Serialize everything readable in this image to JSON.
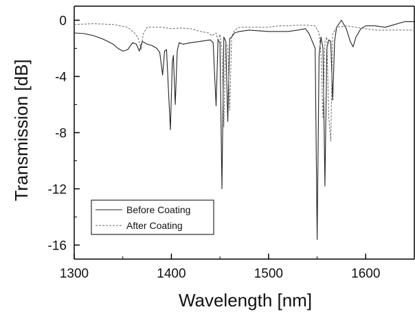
{
  "chart_data": {
    "type": "line",
    "title": "",
    "xlabel": "Wavelength [nm]",
    "ylabel": "Transmission [dB]",
    "xlim": [
      1300,
      1650
    ],
    "ylim": [
      -17,
      1
    ],
    "x_ticks": [
      1300,
      1400,
      1500,
      1600
    ],
    "y_ticks": [
      0,
      -4,
      -8,
      -12,
      -16
    ],
    "x_tick_labels": [
      "1300",
      "1400",
      "1500",
      "1600"
    ],
    "y_tick_labels": [
      "0",
      "-4",
      "-8",
      "-12",
      "-16"
    ],
    "grid": false,
    "legend_position": "bottom-left",
    "series": [
      {
        "name": "Before Coating",
        "style": "solid",
        "color": "#222222",
        "points": [
          [
            1300,
            -0.9
          ],
          [
            1310,
            -0.95
          ],
          [
            1320,
            -1.1
          ],
          [
            1330,
            -1.35
          ],
          [
            1340,
            -1.7
          ],
          [
            1345,
            -2.0
          ],
          [
            1350,
            -2.2
          ],
          [
            1355,
            -2.1
          ],
          [
            1360,
            -1.6
          ],
          [
            1364,
            -1.7
          ],
          [
            1367,
            -2.2
          ],
          [
            1370,
            -1.5
          ],
          [
            1375,
            -1.7
          ],
          [
            1380,
            -1.8
          ],
          [
            1385,
            -2.0
          ],
          [
            1388,
            -2.3
          ],
          [
            1391,
            -3.9
          ],
          [
            1393,
            -2.2
          ],
          [
            1395,
            -2.1
          ],
          [
            1397,
            -5.0
          ],
          [
            1399,
            -7.8
          ],
          [
            1401,
            -3.0
          ],
          [
            1402,
            -2.5
          ],
          [
            1404,
            -6.0
          ],
          [
            1406,
            -2.2
          ],
          [
            1408,
            -1.6
          ],
          [
            1412,
            -1.7
          ],
          [
            1420,
            -1.6
          ],
          [
            1430,
            -1.5
          ],
          [
            1440,
            -1.4
          ],
          [
            1443,
            -1.6
          ],
          [
            1446,
            -6.1
          ],
          [
            1448,
            -1.4
          ],
          [
            1450,
            -1.6
          ],
          [
            1452,
            -12.0
          ],
          [
            1454,
            -1.2
          ],
          [
            1456,
            -1.5
          ],
          [
            1458,
            -7.2
          ],
          [
            1460,
            -1.3
          ],
          [
            1462,
            -1.2
          ],
          [
            1465,
            -0.9
          ],
          [
            1470,
            -0.8
          ],
          [
            1480,
            -0.7
          ],
          [
            1490,
            -0.75
          ],
          [
            1500,
            -0.8
          ],
          [
            1510,
            -0.8
          ],
          [
            1520,
            -0.8
          ],
          [
            1530,
            -0.7
          ],
          [
            1538,
            -0.6
          ],
          [
            1542,
            -1.0
          ],
          [
            1545,
            -1.5
          ],
          [
            1548,
            -2.0
          ],
          [
            1550,
            -15.6
          ],
          [
            1552,
            -2.5
          ],
          [
            1554,
            -1.2
          ],
          [
            1556,
            -2.0
          ],
          [
            1558,
            -11.8
          ],
          [
            1560,
            -2.0
          ],
          [
            1562,
            -1.4
          ],
          [
            1564,
            -1.5
          ],
          [
            1566,
            -5.7
          ],
          [
            1568,
            -1.5
          ],
          [
            1570,
            -0.5
          ],
          [
            1575,
            0.0
          ],
          [
            1580,
            -0.6
          ],
          [
            1584,
            -1.5
          ],
          [
            1587,
            -1.9
          ],
          [
            1590,
            -1.2
          ],
          [
            1595,
            -0.6
          ],
          [
            1600,
            -0.4
          ],
          [
            1610,
            -0.4
          ],
          [
            1620,
            -0.5
          ],
          [
            1630,
            -0.3
          ],
          [
            1640,
            -0.1
          ],
          [
            1650,
            -0.1
          ]
        ]
      },
      {
        "name": "After Coating",
        "style": "dashed",
        "color": "#666666",
        "points": [
          [
            1300,
            -0.3
          ],
          [
            1320,
            -0.25
          ],
          [
            1340,
            -0.3
          ],
          [
            1355,
            -0.5
          ],
          [
            1362,
            -0.9
          ],
          [
            1366,
            -1.3
          ],
          [
            1369,
            -2.1
          ],
          [
            1371,
            -1.0
          ],
          [
            1375,
            -0.5
          ],
          [
            1380,
            -0.5
          ],
          [
            1390,
            -0.5
          ],
          [
            1395,
            -0.55
          ],
          [
            1400,
            -0.6
          ],
          [
            1410,
            -0.55
          ],
          [
            1420,
            -0.6
          ],
          [
            1430,
            -0.8
          ],
          [
            1438,
            -0.9
          ],
          [
            1442,
            -1.1
          ],
          [
            1446,
            -0.9
          ],
          [
            1448,
            -1.5
          ],
          [
            1450,
            -1.0
          ],
          [
            1452,
            -2.0
          ],
          [
            1454,
            -7.6
          ],
          [
            1456,
            -1.5
          ],
          [
            1458,
            -2.0
          ],
          [
            1460,
            -6.4
          ],
          [
            1462,
            -1.2
          ],
          [
            1465,
            -0.7
          ],
          [
            1470,
            -0.5
          ],
          [
            1480,
            -0.5
          ],
          [
            1490,
            -0.5
          ],
          [
            1500,
            -0.5
          ],
          [
            1510,
            -0.4
          ],
          [
            1520,
            -0.4
          ],
          [
            1530,
            -0.35
          ],
          [
            1540,
            -0.35
          ],
          [
            1548,
            -0.4
          ],
          [
            1552,
            -0.9
          ],
          [
            1554,
            -2.5
          ],
          [
            1556,
            -7.0
          ],
          [
            1558,
            -1.5
          ],
          [
            1560,
            -1.2
          ],
          [
            1562,
            -6.9
          ],
          [
            1564,
            -8.6
          ],
          [
            1566,
            -1.0
          ],
          [
            1570,
            -0.5
          ],
          [
            1580,
            -0.4
          ],
          [
            1590,
            -0.5
          ],
          [
            1600,
            -0.6
          ],
          [
            1610,
            -0.7
          ],
          [
            1620,
            -0.7
          ],
          [
            1630,
            -0.7
          ],
          [
            1640,
            -0.7
          ],
          [
            1650,
            -0.7
          ]
        ]
      }
    ]
  }
}
